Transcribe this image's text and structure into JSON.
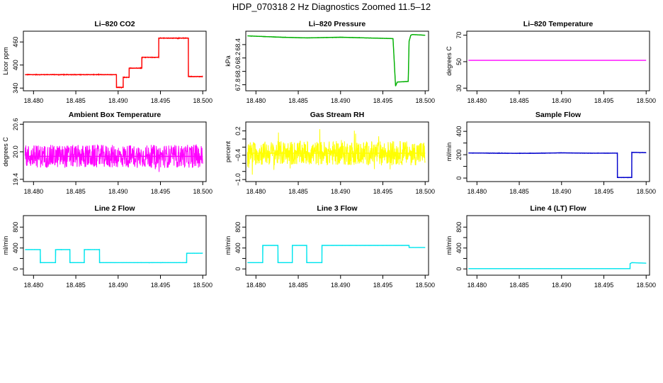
{
  "figure": {
    "title": "HDP_070318  2 Hz Diagnostics Zoomed 11.5–12"
  },
  "chart_data": [
    {
      "type": "line",
      "title": "Li–820 CO2",
      "ylabel": "Licor ppm",
      "xlim": [
        18.4788,
        18.5004
      ],
      "ylim": [
        333,
        488
      ],
      "x_ticks": [
        18.48,
        18.485,
        18.49,
        18.495,
        18.5
      ],
      "x_tick_labels": [
        "18.480",
        "18.485",
        "18.490",
        "18.495",
        "18.500"
      ],
      "y_ticks": [
        340,
        400,
        460
      ],
      "y_tick_labels": [
        "340",
        "400",
        "460"
      ],
      "color": "#ff0000",
      "noise": 2,
      "series": [
        {
          "x": [
            18.479,
            18.4898,
            18.4898,
            18.4906,
            18.4906,
            18.4913,
            18.4913,
            18.4928,
            18.4928,
            18.4948,
            18.4948,
            18.4983,
            18.4983,
            18.5
          ],
          "y": [
            375,
            375,
            342,
            342,
            368,
            368,
            392,
            392,
            420,
            420,
            470,
            470,
            370,
            370
          ]
        }
      ]
    },
    {
      "type": "line",
      "title": "Li–820 Pressure",
      "ylabel": "kPa",
      "xlim": [
        18.4788,
        18.5004
      ],
      "ylim": [
        67.71,
        68.6
      ],
      "x_ticks": [
        18.48,
        18.485,
        18.49,
        18.495,
        18.5
      ],
      "x_tick_labels": [
        "18.480",
        "18.485",
        "18.490",
        "18.495",
        "18.500"
      ],
      "y_ticks": [
        67.8,
        68.0,
        68.2,
        68.4
      ],
      "y_tick_labels": [
        "67.8",
        "68.0",
        "68.2",
        "68.4"
      ],
      "color": "#00b000",
      "noise": 0.006,
      "series": [
        {
          "x": [
            18.479,
            18.481,
            18.483,
            18.486,
            18.49,
            18.493,
            18.4962,
            18.4965,
            18.4967,
            18.498,
            18.4981,
            18.4983,
            18.4985,
            18.5
          ],
          "y": [
            68.53,
            68.52,
            68.51,
            68.5,
            68.51,
            68.5,
            68.49,
            67.78,
            67.84,
            67.85,
            68.45,
            68.54,
            68.55,
            68.54
          ]
        }
      ]
    },
    {
      "type": "line",
      "title": "Li–820 Temperature",
      "ylabel": "degrees C",
      "xlim": [
        18.4788,
        18.5004
      ],
      "ylim": [
        28,
        73
      ],
      "x_ticks": [
        18.48,
        18.485,
        18.49,
        18.495,
        18.5
      ],
      "x_tick_labels": [
        "18.480",
        "18.485",
        "18.490",
        "18.495",
        "18.500"
      ],
      "y_ticks": [
        30,
        50,
        70
      ],
      "y_tick_labels": [
        "30",
        "50",
        "70"
      ],
      "color": "#ff00ff",
      "noise": 0,
      "series": [
        {
          "x": [
            18.479,
            18.5
          ],
          "y": [
            51,
            51
          ]
        }
      ]
    },
    {
      "type": "line",
      "title": "Ambient Box Temperature",
      "ylabel": "degrees C",
      "xlim": [
        18.4788,
        18.5004
      ],
      "ylim": [
        19.35,
        20.65
      ],
      "x_ticks": [
        18.48,
        18.485,
        18.49,
        18.495,
        18.5
      ],
      "x_tick_labels": [
        "18.480",
        "18.485",
        "18.490",
        "18.495",
        "18.500"
      ],
      "y_ticks": [
        19.4,
        20.0,
        20.6
      ],
      "y_tick_labels": [
        "19.4",
        "20.0",
        "20.6"
      ],
      "color": "#ff00ff",
      "noise": 0.5,
      "series": [
        {
          "x": [
            18.479,
            18.5
          ],
          "y": [
            19.9,
            19.9
          ]
        }
      ]
    },
    {
      "type": "line",
      "title": "Gas Stream RH",
      "ylabel": "percent",
      "xlim": [
        18.4788,
        18.5004
      ],
      "ylim": [
        -1.05,
        0.42
      ],
      "x_ticks": [
        18.48,
        18.485,
        18.49,
        18.495,
        18.5
      ],
      "x_tick_labels": [
        "18.480",
        "18.485",
        "18.490",
        "18.495",
        "18.500"
      ],
      "y_ticks": [
        -1.0,
        -0.4,
        0.2
      ],
      "y_tick_labels": [
        "−1.0",
        "−0.4",
        "0.2"
      ],
      "y_minor_ticks": [
        -0.8,
        -0.6,
        -0.2,
        0.0
      ],
      "color": "#ffff00",
      "noise": 0.6,
      "series": [
        {
          "x": [
            18.479,
            18.5
          ],
          "y": [
            -0.35,
            -0.35
          ]
        }
      ]
    },
    {
      "type": "line",
      "title": "Sample Flow",
      "ylabel": "ml/min",
      "xlim": [
        18.4788,
        18.5004
      ],
      "ylim": [
        -30,
        480
      ],
      "x_ticks": [
        18.48,
        18.485,
        18.49,
        18.495,
        18.5
      ],
      "x_tick_labels": [
        "18.480",
        "18.485",
        "18.490",
        "18.495",
        "18.500"
      ],
      "y_ticks": [
        0,
        100,
        200,
        300,
        400
      ],
      "y_tick_labels": [
        "0",
        "",
        "200",
        "",
        "400"
      ],
      "color": "#0000cc",
      "noise": 4,
      "series": [
        {
          "x": [
            18.479,
            18.482,
            18.485,
            18.488,
            18.49,
            18.493,
            18.4966,
            18.4966,
            18.4983,
            18.4983,
            18.5
          ],
          "y": [
            215,
            213,
            212,
            213,
            216,
            213,
            213,
            5,
            5,
            220,
            218
          ]
        }
      ]
    },
    {
      "type": "line",
      "title": "Line 2 Flow",
      "ylabel": "ml/min",
      "xlim": [
        18.4788,
        18.5004
      ],
      "ylim": [
        -120,
        1020
      ],
      "x_ticks": [
        18.48,
        18.485,
        18.49,
        18.495,
        18.5
      ],
      "x_tick_labels": [
        "18.480",
        "18.485",
        "18.490",
        "18.495",
        "18.500"
      ],
      "y_ticks": [
        0,
        200,
        400,
        600,
        800
      ],
      "y_tick_labels": [
        "0",
        "",
        "400",
        "",
        "800"
      ],
      "color": "#00e5ee",
      "noise": 6,
      "series": [
        {
          "x": [
            18.479,
            18.4808,
            18.4808,
            18.4826,
            18.4826,
            18.4843,
            18.4843,
            18.486,
            18.486,
            18.4878,
            18.4878,
            18.4981,
            18.4981,
            18.5
          ],
          "y": [
            370,
            370,
            120,
            120,
            370,
            370,
            120,
            120,
            370,
            370,
            120,
            120,
            300,
            300
          ]
        }
      ]
    },
    {
      "type": "line",
      "title": "Line 3 Flow",
      "ylabel": "ml/min",
      "xlim": [
        18.4788,
        18.5004
      ],
      "ylim": [
        -120,
        1020
      ],
      "x_ticks": [
        18.48,
        18.485,
        18.49,
        18.495,
        18.5
      ],
      "x_tick_labels": [
        "18.480",
        "18.485",
        "18.490",
        "18.495",
        "18.500"
      ],
      "y_ticks": [
        0,
        200,
        400,
        600,
        800
      ],
      "y_tick_labels": [
        "0",
        "",
        "400",
        "",
        "800"
      ],
      "color": "#00e5ee",
      "noise": 3,
      "series": [
        {
          "x": [
            18.479,
            18.4808,
            18.4808,
            18.4826,
            18.4826,
            18.4843,
            18.4843,
            18.486,
            18.486,
            18.4878,
            18.4878,
            18.4981,
            18.4981,
            18.5
          ],
          "y": [
            120,
            120,
            450,
            450,
            120,
            120,
            450,
            450,
            120,
            120,
            450,
            450,
            410,
            410
          ]
        }
      ]
    },
    {
      "type": "line",
      "title": "Line 4 (LT) Flow",
      "ylabel": "ml/min",
      "xlim": [
        18.4788,
        18.5004
      ],
      "ylim": [
        -120,
        1020
      ],
      "x_ticks": [
        18.48,
        18.485,
        18.49,
        18.495,
        18.5
      ],
      "x_tick_labels": [
        "18.480",
        "18.485",
        "18.490",
        "18.495",
        "18.500"
      ],
      "y_ticks": [
        0,
        200,
        400,
        600,
        800
      ],
      "y_tick_labels": [
        "0",
        "",
        "400",
        "",
        "800"
      ],
      "color": "#00e5ee",
      "noise": 2,
      "series": [
        {
          "x": [
            18.479,
            18.4981,
            18.4981,
            18.4983,
            18.5
          ],
          "y": [
            5,
            5,
            100,
            120,
            110
          ]
        }
      ]
    }
  ]
}
